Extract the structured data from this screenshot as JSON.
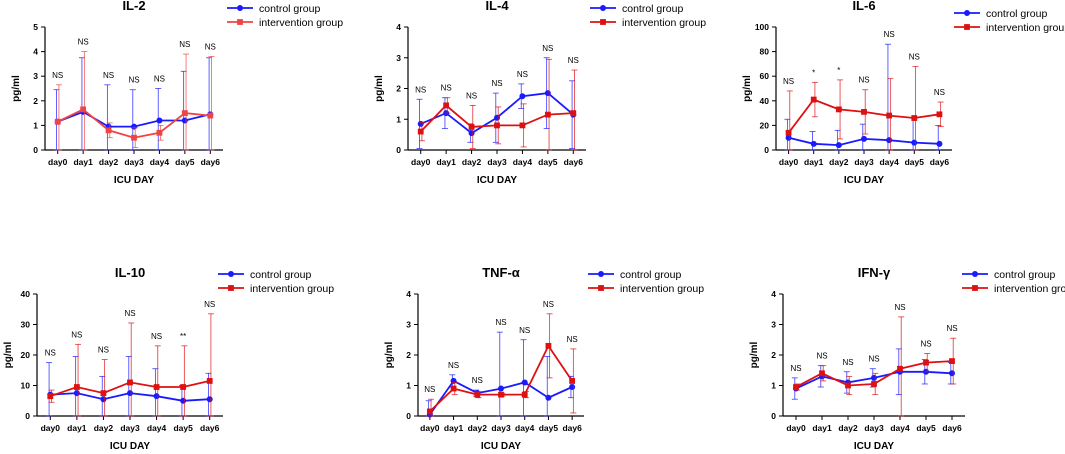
{
  "chart_data": [
    {
      "type": "line",
      "title": "IL-2",
      "xlabel": "ICU DAY",
      "ylabel": "pg/ml",
      "categories": [
        "day0",
        "day1",
        "day2",
        "day3",
        "day4",
        "day5",
        "day6"
      ],
      "ylim": [
        0,
        5
      ],
      "yticks": [
        0,
        1,
        2,
        3,
        4,
        5
      ],
      "legend": "top-right",
      "series": [
        {
          "name": "control group",
          "color": "#1a1aff",
          "values": [
            1.15,
            1.55,
            0.95,
            0.95,
            1.2,
            1.2,
            1.45
          ],
          "err": [
            1.3,
            2.2,
            1.7,
            1.5,
            1.3,
            2.0,
            2.3
          ]
        },
        {
          "name": "intervention group",
          "color": "#ee4444",
          "values": [
            1.15,
            1.65,
            0.8,
            0.5,
            0.7,
            1.5,
            1.4
          ],
          "err": [
            1.5,
            2.35,
            0.3,
            0.4,
            0.3,
            2.4,
            2.4
          ]
        }
      ],
      "annotations": [
        "NS",
        "NS",
        "NS",
        "NS",
        "NS",
        "NS",
        "NS"
      ]
    },
    {
      "type": "line",
      "title": "IL-4",
      "xlabel": "ICU DAY",
      "ylabel": "pg/ml",
      "categories": [
        "day0",
        "day1",
        "day2",
        "day3",
        "day4",
        "day5",
        "day6"
      ],
      "ylim": [
        0,
        4
      ],
      "yticks": [
        0,
        1,
        2,
        3,
        4
      ],
      "legend": "top-right",
      "series": [
        {
          "name": "control group",
          "color": "#1a1aff",
          "values": [
            0.85,
            1.2,
            0.55,
            1.05,
            1.75,
            1.85,
            1.15
          ],
          "err": [
            0.8,
            0.5,
            0.3,
            0.8,
            0.4,
            1.15,
            1.1
          ]
        },
        {
          "name": "intervention group",
          "color": "#dd1111",
          "values": [
            0.6,
            1.45,
            0.75,
            0.8,
            0.8,
            1.15,
            1.2
          ],
          "err": [
            0.3,
            0.25,
            0.7,
            0.6,
            0.7,
            1.8,
            1.4
          ]
        }
      ],
      "annotations": [
        "NS",
        "NS",
        "NS",
        "NS",
        "NS",
        "NS",
        "NS"
      ]
    },
    {
      "type": "line",
      "title": "IL-6",
      "xlabel": "ICU DAY",
      "ylabel": "pg/ml",
      "categories": [
        "day0",
        "day1",
        "day2",
        "day3",
        "day4",
        "day5",
        "day6"
      ],
      "ylim": [
        0,
        100
      ],
      "yticks": [
        0,
        20,
        40,
        60,
        80,
        100
      ],
      "legend": "top-right",
      "series": [
        {
          "name": "control group",
          "color": "#1a1aff",
          "values": [
            10,
            5,
            4,
            9,
            8,
            6,
            5
          ],
          "err": [
            15,
            10,
            12,
            12,
            78,
            20,
            15
          ]
        },
        {
          "name": "intervention group",
          "color": "#dd1111",
          "values": [
            14,
            41,
            33,
            31,
            28,
            26,
            29
          ],
          "err": [
            34,
            14,
            24,
            18,
            30,
            42,
            10
          ]
        }
      ],
      "annotations": [
        "NS",
        "*",
        "*",
        "NS",
        "NS",
        "NS",
        "NS"
      ]
    },
    {
      "type": "line",
      "title": "IL-10",
      "xlabel": "ICU DAY",
      "ylabel": "pg/ml",
      "categories": [
        "day0",
        "day1",
        "day2",
        "day3",
        "day4",
        "day5",
        "day6"
      ],
      "ylim": [
        0,
        40
      ],
      "yticks": [
        0,
        10,
        20,
        30,
        40
      ],
      "legend": "top-right",
      "series": [
        {
          "name": "control group",
          "color": "#1a1aff",
          "values": [
            7,
            7.5,
            5.5,
            7.5,
            6.5,
            5,
            5.5
          ],
          "err": [
            10.5,
            12,
            7.5,
            12,
            9,
            5,
            8.5
          ]
        },
        {
          "name": "intervention group",
          "color": "#dd1111",
          "values": [
            6.5,
            9.5,
            7.5,
            11,
            9.5,
            9.5,
            11.5
          ],
          "err": [
            2,
            14,
            11,
            19.5,
            13.5,
            13.5,
            22
          ]
        }
      ],
      "annotations": [
        "NS",
        "NS",
        "NS",
        "NS",
        "NS",
        "**",
        "NS"
      ]
    },
    {
      "type": "line",
      "title": "TNF-α",
      "xlabel": "ICU DAY",
      "ylabel": "pg/ml",
      "categories": [
        "day0",
        "day1",
        "day2",
        "day3",
        "day4",
        "day5",
        "day6"
      ],
      "ylim": [
        0,
        4
      ],
      "yticks": [
        0,
        1,
        2,
        3,
        4
      ],
      "legend": "top-right",
      "series": [
        {
          "name": "control group",
          "color": "#1a1aff",
          "values": [
            0.05,
            1.15,
            0.75,
            0.9,
            1.1,
            0.6,
            0.95
          ],
          "err": [
            0.45,
            0.2,
            0.1,
            1.85,
            1.4,
            1.35,
            0.35
          ]
        },
        {
          "name": "intervention group",
          "color": "#dd1111",
          "values": [
            0.15,
            0.9,
            0.7,
            0.7,
            0.7,
            2.3,
            1.15
          ],
          "err": [
            0.4,
            0.2,
            0.1,
            0.05,
            0.1,
            1.05,
            1.05
          ]
        }
      ],
      "annotations": [
        "NS",
        "NS",
        "NS",
        "NS",
        "NS",
        "NS",
        "NS"
      ]
    },
    {
      "type": "line",
      "title": "IFN-γ",
      "xlabel": "ICU DAY",
      "ylabel": "pg/ml",
      "categories": [
        "day0",
        "day1",
        "day2",
        "day3",
        "day4",
        "day5",
        "day6"
      ],
      "ylim": [
        0,
        4
      ],
      "yticks": [
        0,
        1,
        2,
        3,
        4
      ],
      "legend": "top-right",
      "series": [
        {
          "name": "control group",
          "color": "#1a1aff",
          "values": [
            0.9,
            1.3,
            1.1,
            1.25,
            1.45,
            1.45,
            1.4
          ],
          "err": [
            0.35,
            0.35,
            0.35,
            0.3,
            0.75,
            0.4,
            0.35
          ]
        },
        {
          "name": "intervention group",
          "color": "#dd1111",
          "values": [
            0.95,
            1.4,
            1.0,
            1.05,
            1.55,
            1.75,
            1.8
          ],
          "err": [
            0.1,
            0.25,
            0.3,
            0.35,
            1.7,
            0.3,
            0.75
          ]
        }
      ],
      "annotations": [
        "NS",
        "NS",
        "NS",
        "NS",
        "NS",
        "NS",
        "NS"
      ]
    }
  ]
}
